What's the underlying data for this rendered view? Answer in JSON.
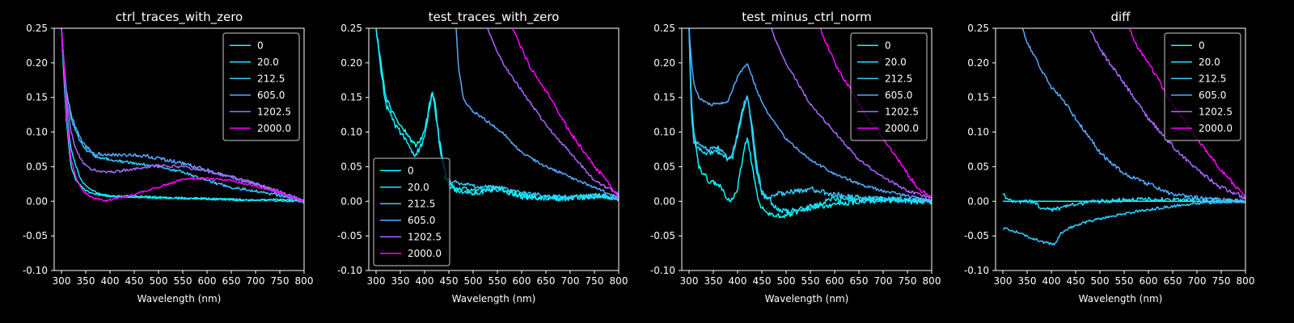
{
  "figure": {
    "background": "#000000",
    "foreground": "#ffffff"
  },
  "chart_data": [
    {
      "type": "line",
      "title": "ctrl_traces_with_zero",
      "xlabel": "Wavelength (nm)",
      "ylabel": "",
      "xlim": [
        285,
        800
      ],
      "ylim": [
        -0.1,
        0.25
      ],
      "xticks": [
        300,
        350,
        400,
        450,
        500,
        550,
        600,
        650,
        700,
        750,
        800
      ],
      "yticks": [
        -0.1,
        -0.05,
        0.0,
        0.05,
        0.1,
        0.15,
        0.2,
        0.25
      ],
      "legend": "top-right",
      "series": [
        {
          "name": "0",
          "color": "#00ffff",
          "noise": 0.001,
          "x": [
            300,
            305,
            310,
            315,
            320,
            330,
            340,
            350,
            360,
            380,
            400,
            450,
            500,
            550,
            600,
            650,
            700,
            750,
            800
          ],
          "y": [
            0.25,
            0.18,
            0.12,
            0.08,
            0.05,
            0.03,
            0.022,
            0.016,
            0.012,
            0.009,
            0.007,
            0.006,
            0.005,
            0.004,
            0.003,
            0.002,
            0.001,
            0.003,
            0.0
          ]
        },
        {
          "name": "20.0",
          "color": "#19e6ff",
          "noise": 0.0015,
          "x": [
            300,
            305,
            310,
            315,
            320,
            330,
            340,
            350,
            360,
            370,
            380,
            400,
            450,
            500,
            550,
            600,
            650,
            700,
            750,
            800
          ],
          "y": [
            0.25,
            0.2,
            0.14,
            0.1,
            0.075,
            0.05,
            0.032,
            0.022,
            0.016,
            0.013,
            0.01,
            0.008,
            0.007,
            0.006,
            0.005,
            0.004,
            0.003,
            0.002,
            0.001,
            0.0
          ]
        },
        {
          "name": "212.5",
          "color": "#33ccff",
          "noise": 0.002,
          "x": [
            300,
            305,
            310,
            320,
            330,
            340,
            350,
            370,
            400,
            450,
            500,
            550,
            600,
            650,
            700,
            750,
            800
          ],
          "y": [
            0.25,
            0.2,
            0.16,
            0.12,
            0.1,
            0.085,
            0.075,
            0.065,
            0.06,
            0.055,
            0.05,
            0.042,
            0.03,
            0.02,
            0.015,
            0.008,
            0.0
          ]
        },
        {
          "name": "605.0",
          "color": "#55aaff",
          "noise": 0.0025,
          "x": [
            300,
            305,
            310,
            320,
            330,
            340,
            350,
            360,
            370,
            400,
            450,
            480,
            500,
            550,
            600,
            650,
            700,
            750,
            800
          ],
          "y": [
            0.25,
            0.2,
            0.16,
            0.125,
            0.105,
            0.09,
            0.08,
            0.073,
            0.069,
            0.067,
            0.066,
            0.065,
            0.062,
            0.055,
            0.045,
            0.035,
            0.025,
            0.012,
            0.0
          ]
        },
        {
          "name": "1202.5",
          "color": "#aa66ff",
          "noise": 0.002,
          "x": [
            300,
            305,
            310,
            320,
            330,
            340,
            350,
            360,
            380,
            400,
            450,
            500,
            550,
            600,
            650,
            700,
            750,
            800
          ],
          "y": [
            0.25,
            0.2,
            0.15,
            0.1,
            0.075,
            0.06,
            0.052,
            0.047,
            0.043,
            0.042,
            0.047,
            0.052,
            0.05,
            0.043,
            0.035,
            0.025,
            0.015,
            0.0
          ]
        },
        {
          "name": "2000.0",
          "color": "#ff00ff",
          "noise": 0.0015,
          "x": [
            300,
            305,
            310,
            315,
            320,
            330,
            340,
            350,
            360,
            370,
            380,
            390,
            400,
            420,
            450,
            500,
            550,
            600,
            650,
            700,
            750,
            800
          ],
          "y": [
            0.25,
            0.2,
            0.13,
            0.09,
            0.06,
            0.035,
            0.02,
            0.012,
            0.007,
            0.004,
            0.002,
            0.0,
            0.002,
            0.005,
            0.01,
            0.02,
            0.032,
            0.033,
            0.03,
            0.022,
            0.012,
            0.0
          ]
        }
      ]
    },
    {
      "type": "line",
      "title": "test_traces_with_zero",
      "xlabel": "Wavelength (nm)",
      "ylabel": "",
      "xlim": [
        285,
        800
      ],
      "ylim": [
        -0.1,
        0.25
      ],
      "xticks": [
        300,
        350,
        400,
        450,
        500,
        550,
        600,
        650,
        700,
        750,
        800
      ],
      "yticks": [
        -0.1,
        -0.05,
        0.0,
        0.05,
        0.1,
        0.15,
        0.2,
        0.25
      ],
      "legend": "lower-left",
      "series": [
        {
          "name": "0",
          "color": "#00ffff",
          "noise": 0.004,
          "x": [
            300,
            310,
            320,
            340,
            360,
            370,
            380,
            390,
            400,
            410,
            415,
            420,
            430,
            440,
            450,
            470,
            500,
            550,
            600,
            650,
            700,
            750,
            800
          ],
          "y": [
            0.25,
            0.2,
            0.15,
            0.12,
            0.1,
            0.09,
            0.08,
            0.085,
            0.1,
            0.14,
            0.16,
            0.15,
            0.09,
            0.05,
            0.025,
            0.018,
            0.015,
            0.02,
            0.008,
            0.005,
            0.005,
            0.008,
            0.005
          ]
        },
        {
          "name": "20.0",
          "color": "#19e6ff",
          "noise": 0.004,
          "x": [
            300,
            310,
            320,
            340,
            360,
            370,
            380,
            390,
            400,
            410,
            415,
            420,
            430,
            440,
            450,
            470,
            500,
            550,
            600,
            650,
            700,
            750,
            800
          ],
          "y": [
            0.25,
            0.19,
            0.14,
            0.11,
            0.09,
            0.075,
            0.068,
            0.075,
            0.095,
            0.135,
            0.155,
            0.145,
            0.085,
            0.045,
            0.022,
            0.015,
            0.012,
            0.018,
            0.007,
            0.004,
            0.004,
            0.007,
            0.004
          ]
        },
        {
          "name": "212.5",
          "color": "#33ccff",
          "noise": 0.003,
          "x": [
            440,
            450,
            460,
            470,
            480,
            500,
            550,
            600,
            650,
            700,
            750,
            800
          ],
          "y": [
            0.035,
            0.03,
            0.028,
            0.026,
            0.025,
            0.022,
            0.02,
            0.012,
            0.008,
            0.006,
            0.008,
            0.005
          ]
        },
        {
          "name": "605.0",
          "color": "#55aaff",
          "noise": 0.002,
          "x": [
            465,
            470,
            480,
            490,
            500,
            520,
            540,
            560,
            580,
            600,
            650,
            700,
            750,
            800
          ],
          "y": [
            0.25,
            0.19,
            0.15,
            0.138,
            0.13,
            0.12,
            0.11,
            0.1,
            0.085,
            0.07,
            0.05,
            0.035,
            0.02,
            0.005
          ]
        },
        {
          "name": "1202.5",
          "color": "#aa66ff",
          "noise": 0.002,
          "x": [
            530,
            550,
            570,
            600,
            620,
            650,
            700,
            750,
            800
          ],
          "y": [
            0.25,
            0.215,
            0.19,
            0.16,
            0.14,
            0.11,
            0.07,
            0.03,
            0.01
          ]
        },
        {
          "name": "2000.0",
          "color": "#ff00ff",
          "noise": 0.003,
          "x": [
            580,
            600,
            620,
            650,
            700,
            750,
            770,
            800
          ],
          "y": [
            0.25,
            0.22,
            0.19,
            0.16,
            0.1,
            0.05,
            0.035,
            0.005
          ]
        }
      ]
    },
    {
      "type": "line",
      "title": "test_minus_ctrl_norm",
      "xlabel": "Wavelength (nm)",
      "ylabel": "",
      "xlim": [
        285,
        800
      ],
      "ylim": [
        -0.1,
        0.25
      ],
      "xticks": [
        300,
        350,
        400,
        450,
        500,
        550,
        600,
        650,
        700,
        750,
        800
      ],
      "yticks": [
        -0.1,
        -0.05,
        0.0,
        0.05,
        0.1,
        0.15,
        0.2,
        0.25
      ],
      "legend": "top-right",
      "series": [
        {
          "name": "0",
          "color": "#00ffff",
          "noise": 0.004,
          "x": [
            300,
            305,
            310,
            320,
            340,
            360,
            370,
            380,
            390,
            400,
            410,
            420,
            430,
            440,
            450,
            460,
            480,
            500,
            550,
            600,
            650,
            700,
            750,
            800
          ],
          "y": [
            0.25,
            0.14,
            0.1,
            0.05,
            0.03,
            0.025,
            0.018,
            0.002,
            0.005,
            0.02,
            0.06,
            0.095,
            0.05,
            0.01,
            -0.01,
            -0.015,
            -0.022,
            -0.02,
            -0.008,
            -0.005,
            0.0,
            0.002,
            0.0,
            0.0
          ]
        },
        {
          "name": "20.0",
          "color": "#19e6ff",
          "noise": 0.004,
          "x": [
            300,
            305,
            310,
            320,
            340,
            360,
            370,
            380,
            390,
            400,
            410,
            420,
            430,
            440,
            450,
            460,
            480,
            500,
            550,
            600,
            650,
            700,
            750,
            800
          ],
          "y": [
            0.25,
            0.12,
            0.085,
            0.075,
            0.07,
            0.07,
            0.068,
            0.058,
            0.065,
            0.095,
            0.13,
            0.15,
            0.11,
            0.05,
            0.015,
            0.005,
            -0.01,
            -0.015,
            -0.01,
            0.005,
            0.002,
            0.003,
            0.002,
            0.0
          ]
        },
        {
          "name": "212.5",
          "color": "#33ccff",
          "noise": 0.004,
          "x": [
            300,
            305,
            310,
            320,
            340,
            360,
            370,
            380,
            390,
            400,
            410,
            420,
            430,
            440,
            450,
            460,
            480,
            500,
            550,
            600,
            650,
            700,
            750,
            800
          ],
          "y": [
            0.25,
            0.13,
            0.095,
            0.08,
            0.075,
            0.078,
            0.07,
            0.06,
            0.07,
            0.1,
            0.135,
            0.152,
            0.1,
            0.04,
            0.01,
            0.005,
            0.01,
            0.012,
            0.018,
            0.01,
            0.005,
            0.003,
            0.002,
            0.0
          ]
        },
        {
          "name": "605.0",
          "color": "#55aaff",
          "noise": 0.002,
          "x": [
            300,
            305,
            310,
            320,
            340,
            360,
            380,
            400,
            420,
            440,
            460,
            480,
            500,
            550,
            600,
            650,
            700,
            750,
            800
          ],
          "y": [
            0.25,
            0.2,
            0.17,
            0.15,
            0.14,
            0.14,
            0.145,
            0.18,
            0.2,
            0.16,
            0.13,
            0.11,
            0.09,
            0.06,
            0.04,
            0.025,
            0.015,
            0.008,
            0.0
          ]
        },
        {
          "name": "1202.5",
          "color": "#aa66ff",
          "noise": 0.002,
          "x": [
            470,
            480,
            500,
            550,
            600,
            650,
            700,
            750,
            800
          ],
          "y": [
            0.25,
            0.23,
            0.2,
            0.14,
            0.1,
            0.06,
            0.035,
            0.015,
            0.005
          ]
        },
        {
          "name": "2000.0",
          "color": "#ff00ff",
          "noise": 0.003,
          "x": [
            570,
            600,
            650,
            700,
            750,
            770,
            800
          ],
          "y": [
            0.25,
            0.2,
            0.14,
            0.09,
            0.04,
            0.02,
            0.005
          ]
        }
      ]
    },
    {
      "type": "line",
      "title": "diff",
      "xlabel": "Wavelength (nm)",
      "ylabel": "",
      "xlim": [
        285,
        800
      ],
      "ylim": [
        -0.1,
        0.25
      ],
      "xticks": [
        300,
        350,
        400,
        450,
        500,
        550,
        600,
        650,
        700,
        750,
        800
      ],
      "yticks": [
        -0.1,
        -0.05,
        0.0,
        0.05,
        0.1,
        0.15,
        0.2,
        0.25
      ],
      "legend": "top-right",
      "series": [
        {
          "name": "0",
          "color": "#00ffff",
          "noise": 0.0,
          "x": [
            300,
            800
          ],
          "y": [
            0.0,
            0.0
          ]
        },
        {
          "name": "20.0",
          "color": "#19e6ff",
          "noise": 0.003,
          "x": [
            300,
            310,
            320,
            340,
            360,
            370,
            380,
            390,
            400,
            420,
            440,
            460,
            480,
            500,
            550,
            600,
            650,
            700,
            750,
            800
          ],
          "y": [
            0.01,
            0.002,
            0.0,
            0.0,
            0.0,
            -0.005,
            -0.01,
            -0.012,
            -0.012,
            -0.01,
            -0.006,
            -0.003,
            0.0,
            0.0,
            0.002,
            0.003,
            0.002,
            0.002,
            0.001,
            0.0
          ]
        },
        {
          "name": "212.5",
          "color": "#33ccff",
          "noise": 0.002,
          "x": [
            300,
            320,
            350,
            380,
            400,
            410,
            420,
            440,
            460,
            500,
            550,
            600,
            650,
            700,
            750,
            800
          ],
          "y": [
            -0.038,
            -0.042,
            -0.05,
            -0.058,
            -0.062,
            -0.06,
            -0.045,
            -0.038,
            -0.032,
            -0.025,
            -0.018,
            -0.012,
            -0.007,
            -0.003,
            -0.001,
            0.0
          ]
        },
        {
          "name": "605.0",
          "color": "#55aaff",
          "noise": 0.003,
          "x": [
            340,
            350,
            380,
            400,
            420,
            450,
            480,
            500,
            550,
            600,
            650,
            700,
            750,
            800
          ],
          "y": [
            0.25,
            0.23,
            0.19,
            0.165,
            0.15,
            0.12,
            0.09,
            0.07,
            0.04,
            0.025,
            0.01,
            0.005,
            0.002,
            0.0
          ]
        },
        {
          "name": "1202.5",
          "color": "#aa66ff",
          "noise": 0.003,
          "x": [
            480,
            500,
            520,
            550,
            600,
            650,
            700,
            750,
            800
          ],
          "y": [
            0.25,
            0.22,
            0.2,
            0.17,
            0.12,
            0.08,
            0.045,
            0.02,
            0.005
          ]
        },
        {
          "name": "2000.0",
          "color": "#ff00ff",
          "noise": 0.003,
          "x": [
            560,
            580,
            600,
            650,
            700,
            750,
            800
          ],
          "y": [
            0.25,
            0.22,
            0.2,
            0.14,
            0.09,
            0.045,
            0.005
          ]
        }
      ]
    }
  ]
}
